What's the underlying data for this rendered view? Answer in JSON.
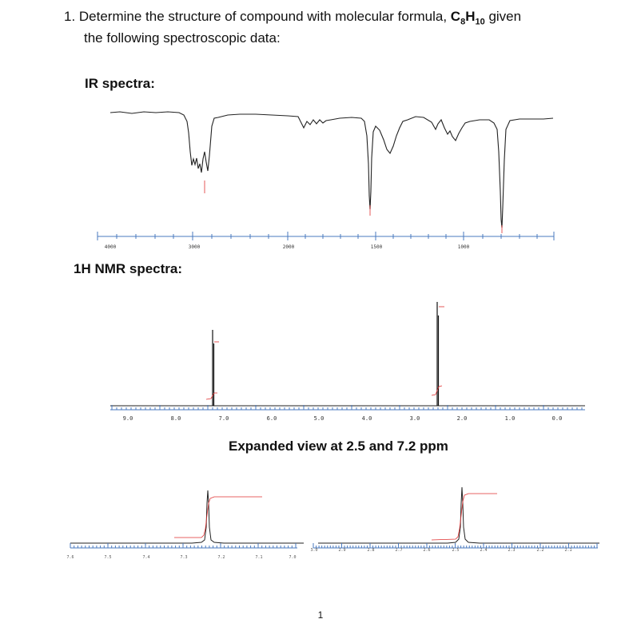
{
  "question": {
    "line1_prefix": "1. Determine the structure of compound with molecular formula, ",
    "formula_c": "C",
    "formula_c_sub": "8",
    "formula_h": "H",
    "formula_h_sub": "10",
    "line1_suffix": " given",
    "line2": "the following spectroscopic data:"
  },
  "ir": {
    "heading": "IR spectra:",
    "tick_labels": [
      "4000",
      "3000",
      "2000",
      "1500",
      "1000"
    ]
  },
  "nmr": {
    "heading": "1H NMR spectra:",
    "tick_labels": [
      "9.0",
      "8.0",
      "7.0",
      "6.0",
      "5.0",
      "4.0",
      "3.0",
      "2.0",
      "1.0",
      "0.0"
    ]
  },
  "expanded": {
    "heading": "Expanded view at 2.5 and 7.2 ppm",
    "left_tick_labels": [
      "7.6",
      "7.5",
      "7.4",
      "7.3",
      "7.2",
      "7.1",
      "7.0"
    ],
    "right_tick_labels": [
      "3.0",
      "2.9",
      "2.8",
      "2.7",
      "2.6",
      "2.5",
      "2.4",
      "2.3",
      "2.2",
      "2.1"
    ]
  },
  "page_number": "1",
  "colors": {
    "trace": "#222222",
    "integral": "#e03030",
    "axis": "#4a7abf"
  }
}
